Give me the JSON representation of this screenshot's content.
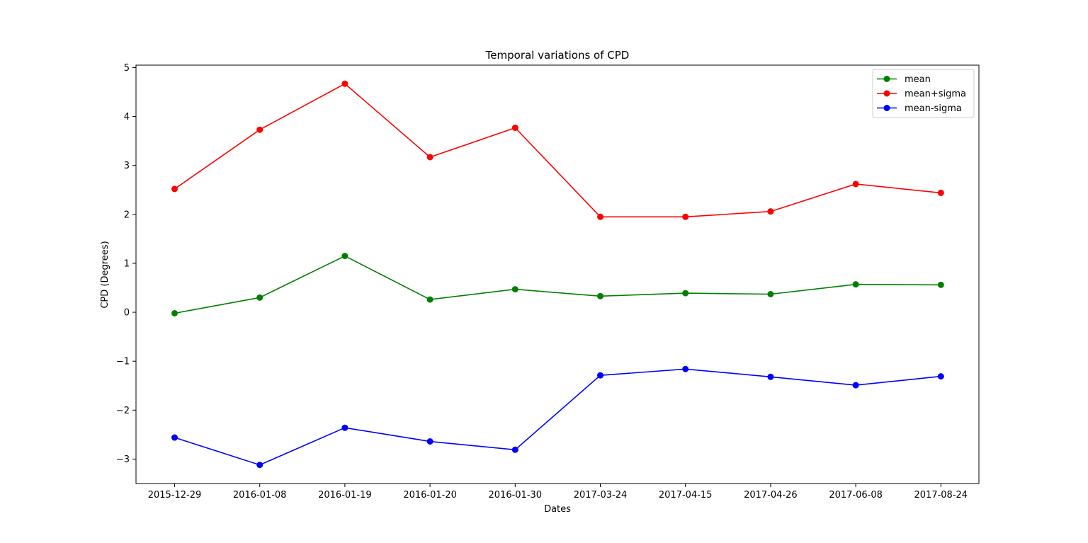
{
  "chart_data": {
    "type": "line",
    "title": "Temporal variations of CPD",
    "xlabel": "Dates",
    "ylabel": "CPD (Degrees)",
    "categories": [
      "2015-12-29",
      "2016-01-08",
      "2016-01-19",
      "2016-01-20",
      "2016-01-30",
      "2017-03-24",
      "2017-04-15",
      "2017-04-26",
      "2017-06-08",
      "2017-08-24"
    ],
    "ylim": [
      -3.5,
      5.05
    ],
    "yticks": [
      -3,
      -2,
      -1,
      0,
      1,
      2,
      3,
      4,
      5
    ],
    "ytick_labels": [
      "−3",
      "−2",
      "−1",
      "0",
      "1",
      "2",
      "3",
      "4",
      "5"
    ],
    "grid": false,
    "legend_position": "upper-right",
    "markers": "circle",
    "series": [
      {
        "name": "mean",
        "color": "#008000",
        "values": [
          -0.02,
          0.3,
          1.15,
          0.26,
          0.47,
          0.33,
          0.39,
          0.37,
          0.57,
          0.56
        ]
      },
      {
        "name": "mean+sigma",
        "color": "#ff0000",
        "values": [
          2.52,
          3.73,
          4.67,
          3.17,
          3.77,
          1.95,
          1.95,
          2.06,
          2.62,
          2.44
        ]
      },
      {
        "name": "mean-sigma",
        "color": "#0000ff",
        "values": [
          -2.56,
          -3.12,
          -2.36,
          -2.64,
          -2.81,
          -1.29,
          -1.16,
          -1.32,
          -1.49,
          -1.31
        ]
      }
    ]
  }
}
